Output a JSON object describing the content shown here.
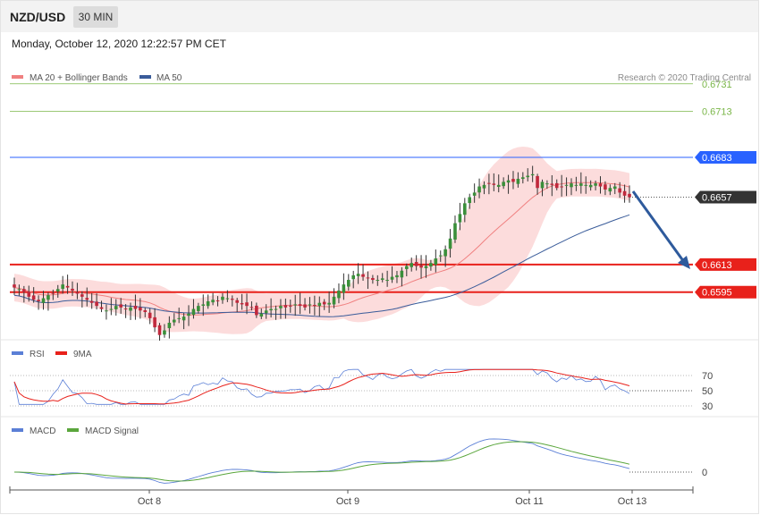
{
  "header": {
    "symbol": "NZD/USD",
    "timeframe": "30 MIN"
  },
  "datetime": "Monday, October 12, 2020 12:22:57 PM CET",
  "credit": "Research © 2020 Trading Central",
  "colors": {
    "ma20": "#f08080",
    "ma50": "#3a5c9a",
    "red": "#e8211b",
    "blue": "#2962ff",
    "green": "#7ab648",
    "rsi": "#5b7fd6",
    "macdsignal": "#5aa63c",
    "band": "#fcd6d6",
    "bull": "#3a8f3a",
    "bear": "#c0283c"
  },
  "chart_data": [
    {
      "type": "candlestick",
      "legend": [
        {
          "name": "MA 20 + Bollinger Bands",
          "color": "#f08080"
        },
        {
          "name": "MA 50",
          "color": "#3a5c9a"
        }
      ],
      "x_ticks": [
        "Oct 8",
        "Oct 9",
        "Oct 11",
        "Oct 13"
      ],
      "ylim": [
        0.6545,
        0.674
      ],
      "levels": [
        {
          "value": 0.6731,
          "label": "0.6731",
          "kind": "resistance-green"
        },
        {
          "value": 0.6713,
          "label": "0.6713",
          "kind": "resistance-green"
        },
        {
          "value": 0.6683,
          "label": "0.6683",
          "kind": "pivot-blue"
        },
        {
          "value": 0.6657,
          "label": "0.6657",
          "kind": "last-price"
        },
        {
          "value": 0.6613,
          "label": "0.6613",
          "kind": "support-red"
        },
        {
          "value": 0.6595,
          "label": "0.6595",
          "kind": "support-red"
        }
      ],
      "close": [
        0.6598,
        0.6597,
        0.6595,
        0.6592,
        0.659,
        0.6589,
        0.6591,
        0.6593,
        0.6594,
        0.6597,
        0.66,
        0.6598,
        0.6596,
        0.6594,
        0.6592,
        0.659,
        0.6588,
        0.6586,
        0.6584,
        0.6583,
        0.6584,
        0.6586,
        0.6585,
        0.6584,
        0.6585,
        0.6584,
        0.6583,
        0.6582,
        0.6578,
        0.6572,
        0.6567,
        0.657,
        0.6575,
        0.6577,
        0.6578,
        0.6579,
        0.6581,
        0.6584,
        0.6586,
        0.6587,
        0.6589,
        0.659,
        0.6589,
        0.6592,
        0.6591,
        0.659,
        0.6588,
        0.6587,
        0.6586,
        0.6585,
        0.658,
        0.6581,
        0.6583,
        0.6584,
        0.6584,
        0.6586,
        0.6585,
        0.6586,
        0.6587,
        0.6586,
        0.6585,
        0.6587,
        0.6586,
        0.6588,
        0.6587,
        0.6588,
        0.6592,
        0.6596,
        0.66,
        0.6603,
        0.6606,
        0.6607,
        0.6605,
        0.6604,
        0.6603,
        0.6603,
        0.6604,
        0.6603,
        0.6605,
        0.6606,
        0.6609,
        0.6612,
        0.6614,
        0.6612,
        0.6611,
        0.6612,
        0.6614,
        0.6617,
        0.6619,
        0.6623,
        0.663,
        0.664,
        0.6646,
        0.6653,
        0.6657,
        0.666,
        0.6664,
        0.6665,
        0.6666,
        0.6665,
        0.6665,
        0.6667,
        0.6668,
        0.6667,
        0.6669,
        0.667,
        0.6671,
        0.6672,
        0.6663,
        0.6667,
        0.6666,
        0.6665,
        0.6663,
        0.6664,
        0.6665,
        0.6666,
        0.6665,
        0.6666,
        0.6665,
        0.6665,
        0.6666,
        0.6664,
        0.6662,
        0.6663,
        0.6664,
        0.666,
        0.6658,
        0.6657
      ],
      "rsi": {
        "name": "RSI",
        "signal_name": "9MA",
        "levels": [
          70,
          50,
          30
        ],
        "ylim": [
          20,
          80
        ]
      },
      "macd": {
        "name": "MACD",
        "signal_name": "MACD Signal",
        "zero_label": "0"
      }
    }
  ]
}
